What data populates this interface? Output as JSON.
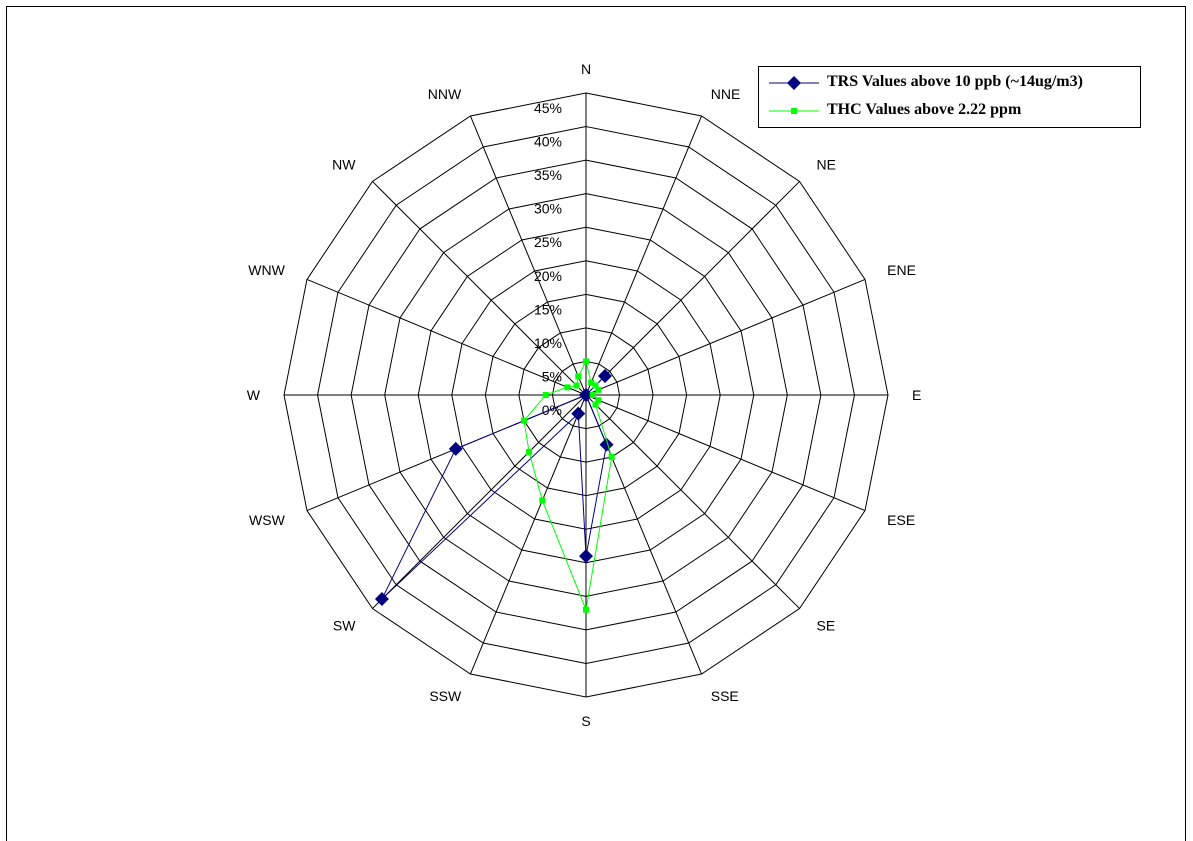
{
  "chart_data": {
    "type": "radar",
    "categories": [
      "N",
      "NNE",
      "NE",
      "ENE",
      "E",
      "ESE",
      "SE",
      "SSE",
      "S",
      "SSW",
      "SW",
      "WSW",
      "W",
      "WNW",
      "NW",
      "NNW"
    ],
    "radial_ticks": [
      "0%",
      "5%",
      "10%",
      "15%",
      "20%",
      "25%",
      "30%",
      "35%",
      "40%",
      "45%"
    ],
    "rmax": 45,
    "series": [
      {
        "name": "TRS Values above 10 ppb (~14ug/m3)",
        "color": "#000080",
        "marker": "diamond",
        "values": [
          0,
          0,
          4,
          0,
          0,
          0,
          0,
          8,
          24,
          3,
          43,
          21,
          0,
          0,
          0,
          0
        ]
      },
      {
        "name": "THC Values above 2.22 ppm",
        "color": "#00ff00",
        "marker": "square",
        "values": [
          5,
          2,
          2,
          2,
          1,
          2,
          2,
          10,
          32,
          17,
          12,
          10,
          6,
          3,
          2,
          3
        ]
      }
    ]
  }
}
